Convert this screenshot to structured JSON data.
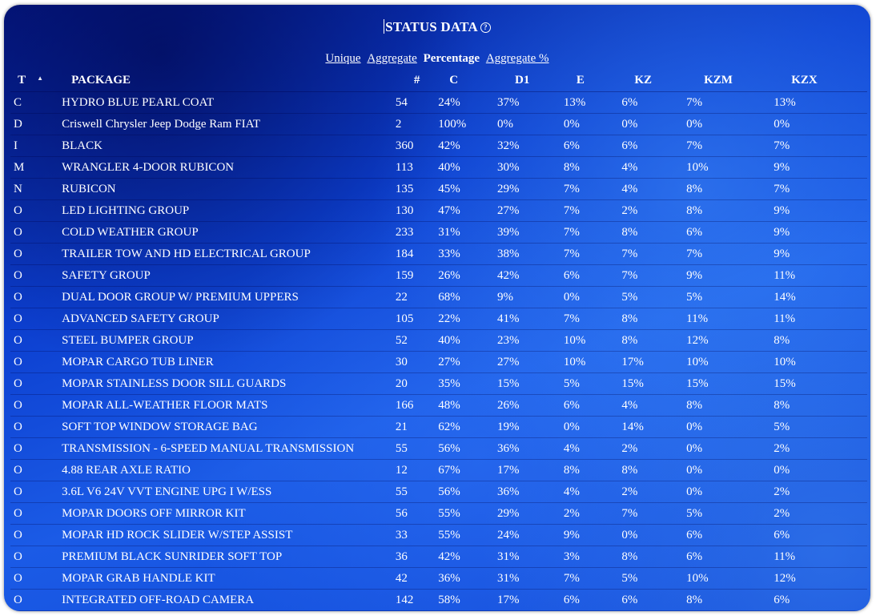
{
  "header": {
    "title": "STATUS DATA",
    "help_icon": "question-circle-icon"
  },
  "modes": {
    "unique": "Unique",
    "aggregate": "Aggregate",
    "percentage": "Percentage",
    "aggregate_pct": "Aggregate %"
  },
  "columns": {
    "t": "T",
    "sort_icon": "sort-ascending-icon",
    "package": "PACKAGE",
    "count": "#",
    "c": "C",
    "d1": "D1",
    "e": "E",
    "kz": "KZ",
    "kzm": "KZM",
    "kzx": "KZX"
  },
  "rows": [
    {
      "t": "C",
      "package": "HYDRO BLUE PEARL COAT",
      "count": "54",
      "c": "24%",
      "d1": "37%",
      "e": "13%",
      "kz": "6%",
      "kzm": "7%",
      "kzx": "13%"
    },
    {
      "t": "D",
      "package": "Criswell Chrysler Jeep Dodge Ram FIAT",
      "count": "2",
      "c": "100%",
      "d1": "0%",
      "e": "0%",
      "kz": "0%",
      "kzm": "0%",
      "kzx": "0%"
    },
    {
      "t": "I",
      "package": "BLACK",
      "count": "360",
      "c": "42%",
      "d1": "32%",
      "e": "6%",
      "kz": "6%",
      "kzm": "7%",
      "kzx": "7%"
    },
    {
      "t": "M",
      "package": "WRANGLER 4-DOOR RUBICON",
      "count": "113",
      "c": "40%",
      "d1": "30%",
      "e": "8%",
      "kz": "4%",
      "kzm": "10%",
      "kzx": "9%"
    },
    {
      "t": "N",
      "package": "RUBICON",
      "count": "135",
      "c": "45%",
      "d1": "29%",
      "e": "7%",
      "kz": "4%",
      "kzm": "8%",
      "kzx": "7%"
    },
    {
      "t": "O",
      "package": "LED LIGHTING GROUP",
      "count": "130",
      "c": "47%",
      "d1": "27%",
      "e": "7%",
      "kz": "2%",
      "kzm": "8%",
      "kzx": "9%"
    },
    {
      "t": "O",
      "package": "COLD WEATHER GROUP",
      "count": "233",
      "c": "31%",
      "d1": "39%",
      "e": "7%",
      "kz": "8%",
      "kzm": "6%",
      "kzx": "9%"
    },
    {
      "t": "O",
      "package": "TRAILER TOW AND HD ELECTRICAL GROUP",
      "count": "184",
      "c": "33%",
      "d1": "38%",
      "e": "7%",
      "kz": "7%",
      "kzm": "7%",
      "kzx": "9%"
    },
    {
      "t": "O",
      "package": "SAFETY GROUP",
      "count": "159",
      "c": "26%",
      "d1": "42%",
      "e": "6%",
      "kz": "7%",
      "kzm": "9%",
      "kzx": "11%"
    },
    {
      "t": "O",
      "package": "DUAL DOOR GROUP W/ PREMIUM UPPERS",
      "count": "22",
      "c": "68%",
      "d1": "9%",
      "e": "0%",
      "kz": "5%",
      "kzm": "5%",
      "kzx": "14%"
    },
    {
      "t": "O",
      "package": "ADVANCED SAFETY GROUP",
      "count": "105",
      "c": "22%",
      "d1": "41%",
      "e": "7%",
      "kz": "8%",
      "kzm": "11%",
      "kzx": "11%"
    },
    {
      "t": "O",
      "package": "STEEL BUMPER GROUP",
      "count": "52",
      "c": "40%",
      "d1": "23%",
      "e": "10%",
      "kz": "8%",
      "kzm": "12%",
      "kzx": "8%"
    },
    {
      "t": "O",
      "package": "MOPAR CARGO TUB LINER",
      "count": "30",
      "c": "27%",
      "d1": "27%",
      "e": "10%",
      "kz": "17%",
      "kzm": "10%",
      "kzx": "10%"
    },
    {
      "t": "O",
      "package": "MOPAR STAINLESS DOOR SILL GUARDS",
      "count": "20",
      "c": "35%",
      "d1": "15%",
      "e": "5%",
      "kz": "15%",
      "kzm": "15%",
      "kzx": "15%"
    },
    {
      "t": "O",
      "package": "MOPAR ALL-WEATHER FLOOR MATS",
      "count": "166",
      "c": "48%",
      "d1": "26%",
      "e": "6%",
      "kz": "4%",
      "kzm": "8%",
      "kzx": "8%"
    },
    {
      "t": "O",
      "package": "SOFT TOP WINDOW STORAGE BAG",
      "count": "21",
      "c": "62%",
      "d1": "19%",
      "e": "0%",
      "kz": "14%",
      "kzm": "0%",
      "kzx": "5%"
    },
    {
      "t": "O",
      "package": "TRANSMISSION - 6-SPEED MANUAL TRANSMISSION",
      "count": "55",
      "c": "56%",
      "d1": "36%",
      "e": "4%",
      "kz": "2%",
      "kzm": "0%",
      "kzx": "2%"
    },
    {
      "t": "O",
      "package": "4.88 REAR AXLE RATIO",
      "count": "12",
      "c": "67%",
      "d1": "17%",
      "e": "8%",
      "kz": "8%",
      "kzm": "0%",
      "kzx": "0%"
    },
    {
      "t": "O",
      "package": "3.6L V6 24V VVT ENGINE UPG I W/ESS",
      "count": "55",
      "c": "56%",
      "d1": "36%",
      "e": "4%",
      "kz": "2%",
      "kzm": "0%",
      "kzx": "2%"
    },
    {
      "t": "O",
      "package": "MOPAR DOORS OFF MIRROR KIT",
      "count": "56",
      "c": "55%",
      "d1": "29%",
      "e": "2%",
      "kz": "7%",
      "kzm": "5%",
      "kzx": "2%"
    },
    {
      "t": "O",
      "package": "MOPAR HD ROCK SLIDER W/STEP ASSIST",
      "count": "33",
      "c": "55%",
      "d1": "24%",
      "e": "9%",
      "kz": "0%",
      "kzm": "6%",
      "kzx": "6%"
    },
    {
      "t": "O",
      "package": "PREMIUM BLACK SUNRIDER SOFT TOP",
      "count": "36",
      "c": "42%",
      "d1": "31%",
      "e": "3%",
      "kz": "8%",
      "kzm": "6%",
      "kzx": "11%"
    },
    {
      "t": "O",
      "package": "MOPAR GRAB HANDLE KIT",
      "count": "42",
      "c": "36%",
      "d1": "31%",
      "e": "7%",
      "kz": "5%",
      "kzm": "10%",
      "kzx": "12%"
    },
    {
      "t": "O",
      "package": "INTEGRATED OFF-ROAD CAMERA",
      "count": "142",
      "c": "58%",
      "d1": "17%",
      "e": "6%",
      "kz": "6%",
      "kzm": "8%",
      "kzx": "6%"
    }
  ]
}
